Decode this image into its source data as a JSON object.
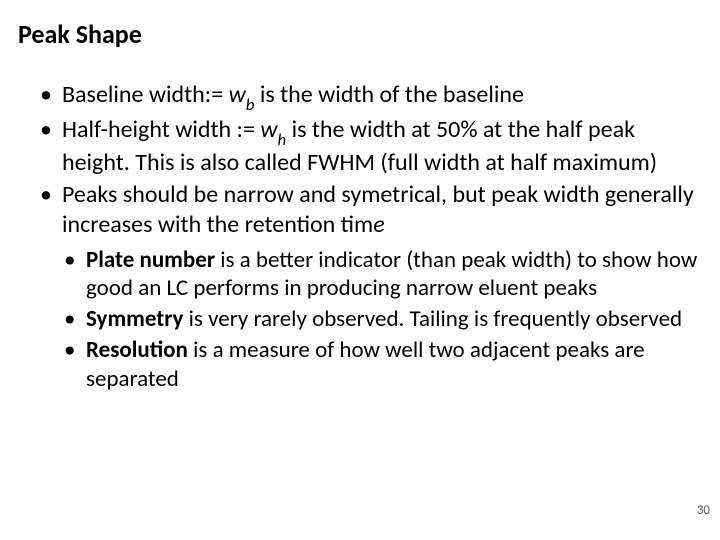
{
  "title": "Peak Shape",
  "bullets": {
    "b1_pre": "Baseline width:= ",
    "b1_var": "w",
    "b1_sub": "b",
    "b1_post": " is the width of the baseline",
    "b2_pre": "Half-height width := ",
    "b2_var": "w",
    "b2_sub": "h",
    "b2_post": " is the width at 50% at the half peak height. This is also called FWHM (full width at half maximum)",
    "b3_pre": "Peaks should be narrow and symetrical, but peak width generally increases with the retention tim",
    "b3_italic": "e"
  },
  "sub_bullets": {
    "s1_bold": "Plate number",
    "s1_rest": " is a better indicator (than peak width) to show how good an LC performs in producing narrow eluent peaks",
    "s2_bold": "Symmetry",
    "s2_rest": " is very rarely observed. Tailing is frequently observed",
    "s3_bold": "Resolution",
    "s3_rest": " is a measure of how well two adjacent peaks are separated"
  },
  "page_number": "30",
  "colors": {
    "background": "#ffffff",
    "text": "#000000",
    "page_num": "#595959"
  },
  "typography": {
    "title_fontsize": 26,
    "bullet_fontsize": 24,
    "sub_bullet_fontsize": 23,
    "page_num_fontsize": 13,
    "font_family": "Calibri"
  }
}
